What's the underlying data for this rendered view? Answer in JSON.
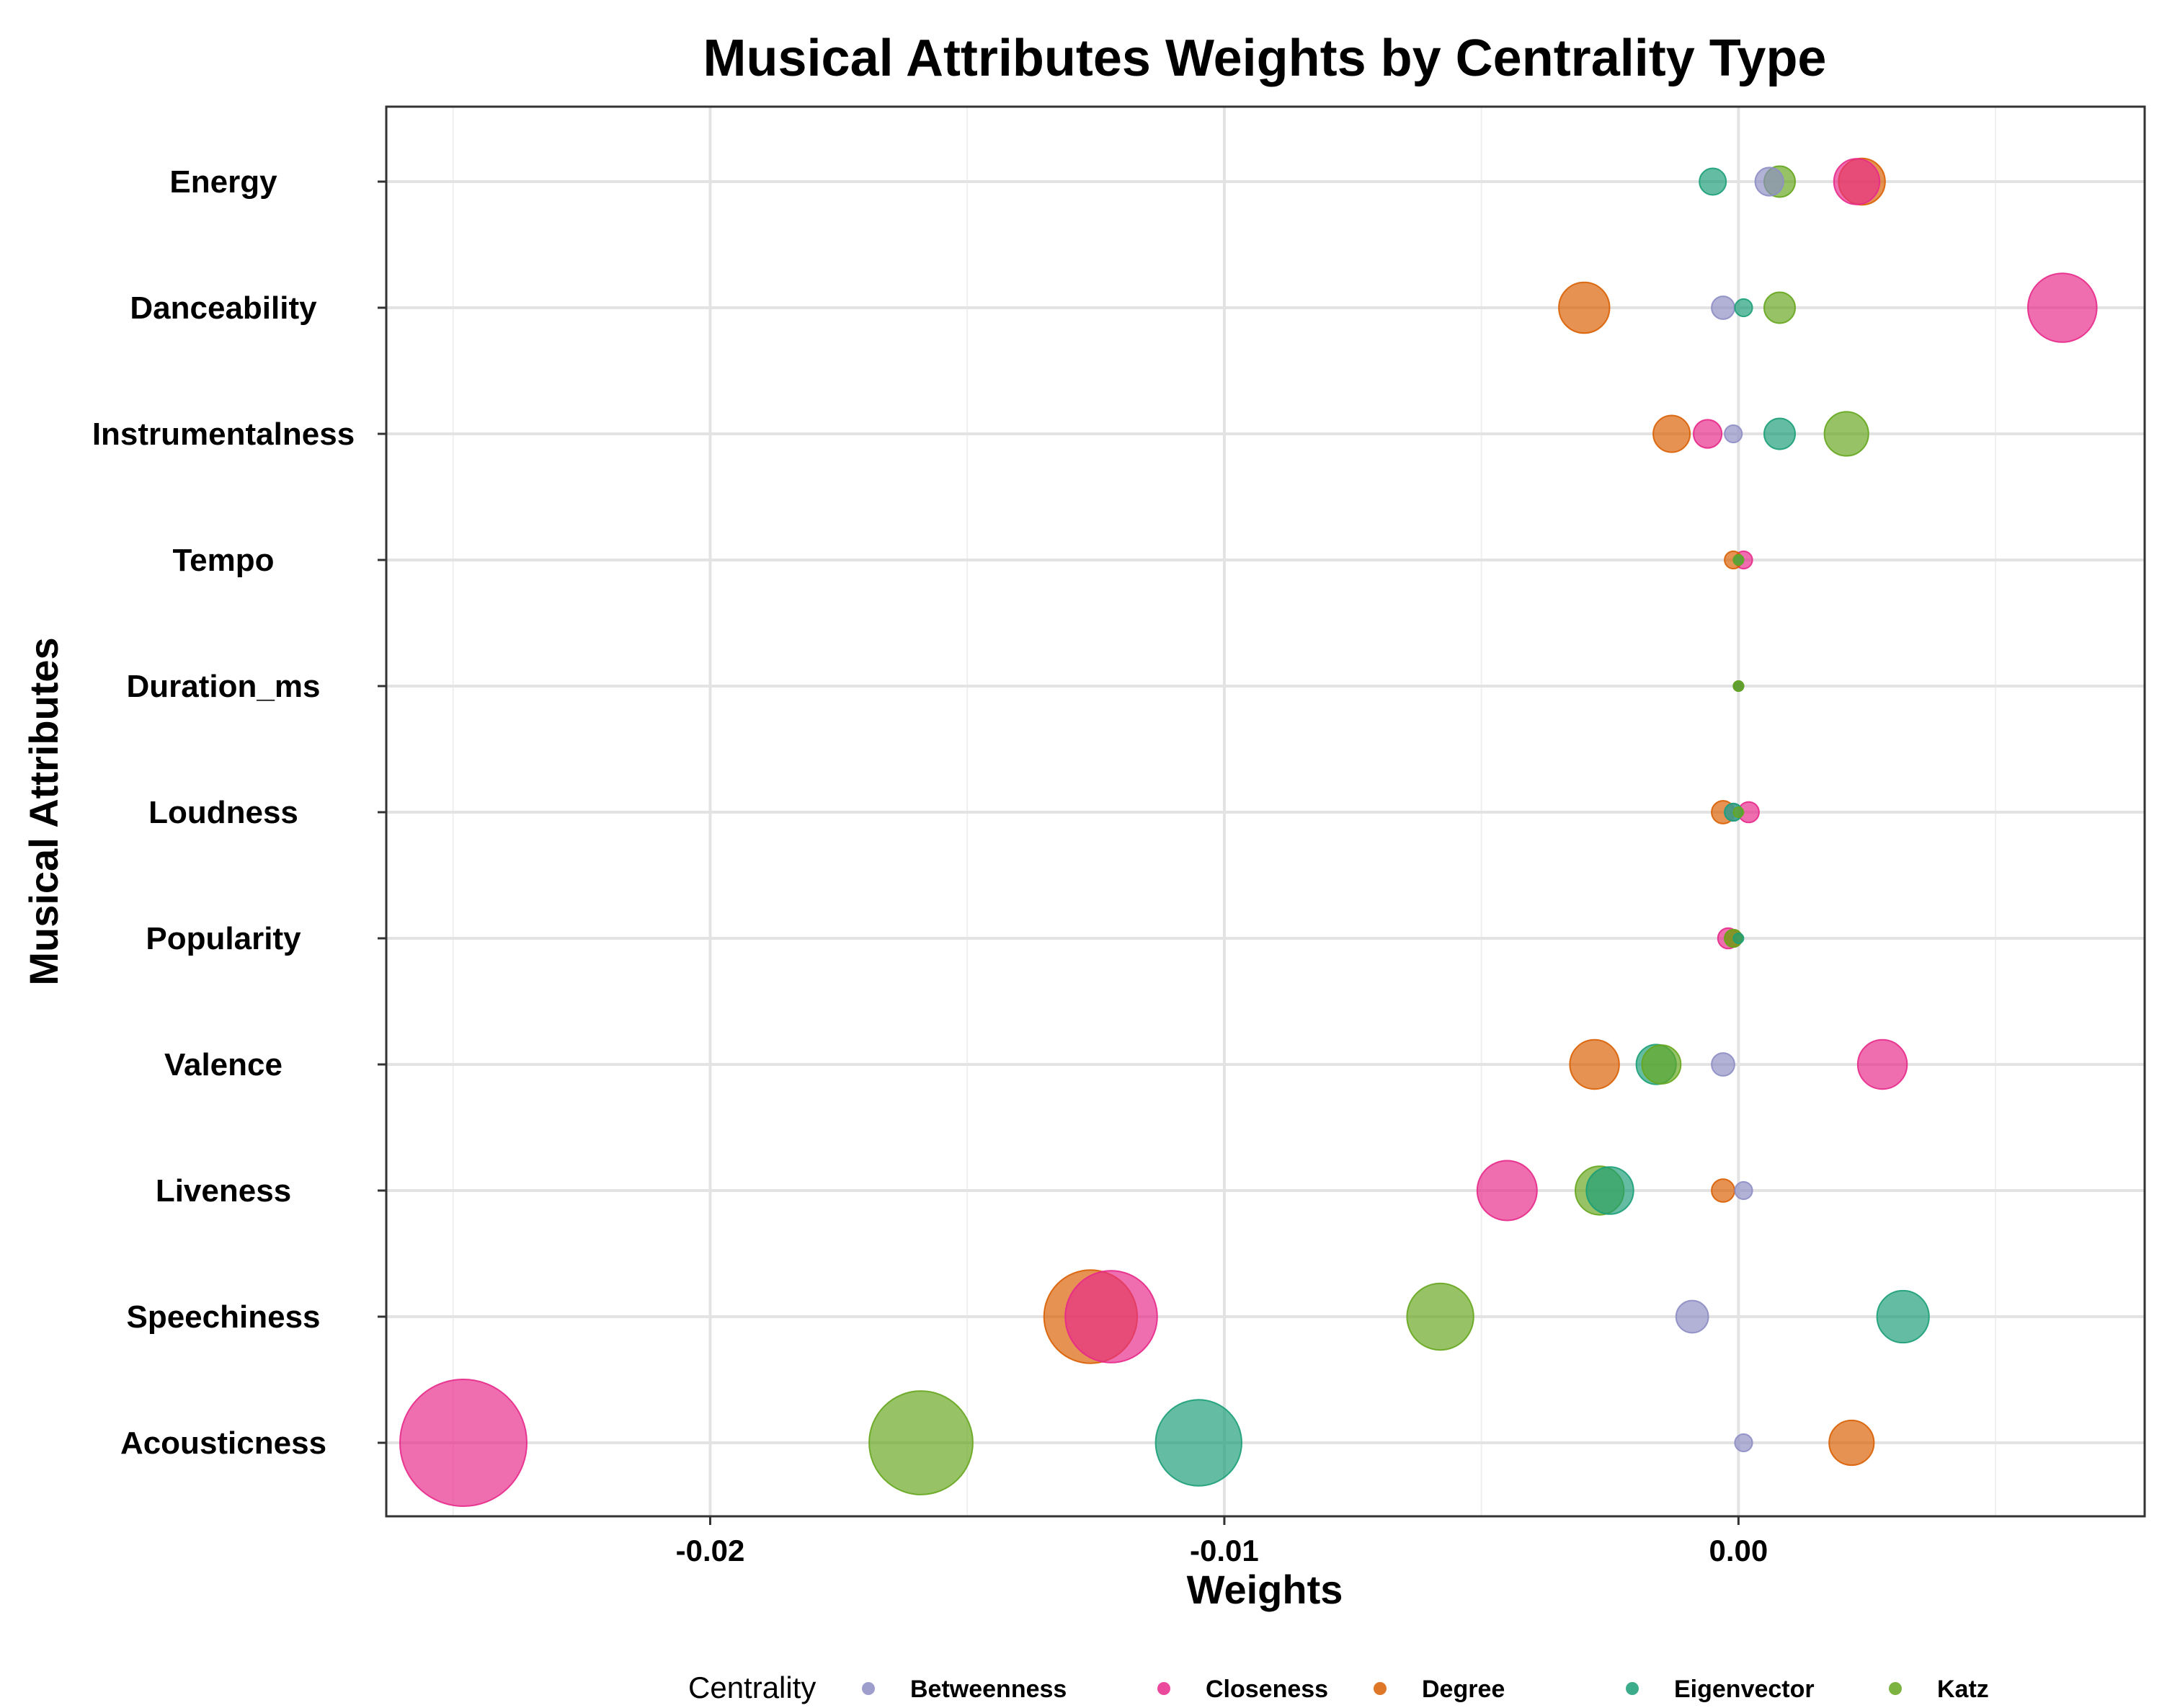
{
  "chart_data": {
    "type": "scatter",
    "title": "Musical Attributes Weights by Centrality Type",
    "xlabel": "Weights",
    "ylabel": "Musical Attributes",
    "xlim": [
      -0.0263,
      0.0079
    ],
    "x_ticks": [
      -0.02,
      -0.01,
      0.0
    ],
    "x_tick_labels": [
      "-0.02",
      "-0.01",
      "0.00"
    ],
    "x_minor_ticks": [
      -0.025,
      -0.015,
      -0.005,
      0.005
    ],
    "categories": [
      "Energy",
      "Danceability",
      "Instrumentalness",
      "Tempo",
      "Duration_ms",
      "Loudness",
      "Popularity",
      "Valence",
      "Liveness",
      "Speechiness",
      "Acousticness"
    ],
    "legend": {
      "title": "Centrality",
      "position": "bottom"
    },
    "size_encoding": "absolute weight",
    "series": [
      {
        "name": "Betweenness",
        "color": "#8d8dc4",
        "values": [
          0.0006,
          -0.0003,
          -0.0001,
          0.0,
          0.0,
          -0.0001,
          -0.0001,
          -0.0003,
          0.0001,
          -0.0009,
          0.0001
        ]
      },
      {
        "name": "Closeness",
        "color": "#e7298a",
        "values": [
          0.0023,
          0.0063,
          -0.0006,
          0.0001,
          0.0,
          0.0002,
          -0.0002,
          0.0028,
          -0.0045,
          -0.0122,
          -0.0248
        ]
      },
      {
        "name": "Degree",
        "color": "#d95f02",
        "values": [
          0.0024,
          -0.003,
          -0.0013,
          -0.0001,
          0.0,
          -0.0003,
          -0.0001,
          -0.0028,
          -0.0003,
          -0.0126,
          0.0022
        ]
      },
      {
        "name": "Eigenvector",
        "color": "#1b9e77",
        "values": [
          -0.0005,
          0.0001,
          0.0008,
          0.0,
          0.0,
          -0.0001,
          0.0,
          -0.0016,
          -0.0025,
          0.0032,
          -0.0105
        ]
      },
      {
        "name": "Katz",
        "color": "#66a61e",
        "values": [
          0.0008,
          0.0008,
          0.0021,
          0.0,
          0.0,
          0.0,
          -0.0001,
          -0.0015,
          -0.0027,
          -0.0058,
          -0.0159
        ]
      }
    ]
  }
}
